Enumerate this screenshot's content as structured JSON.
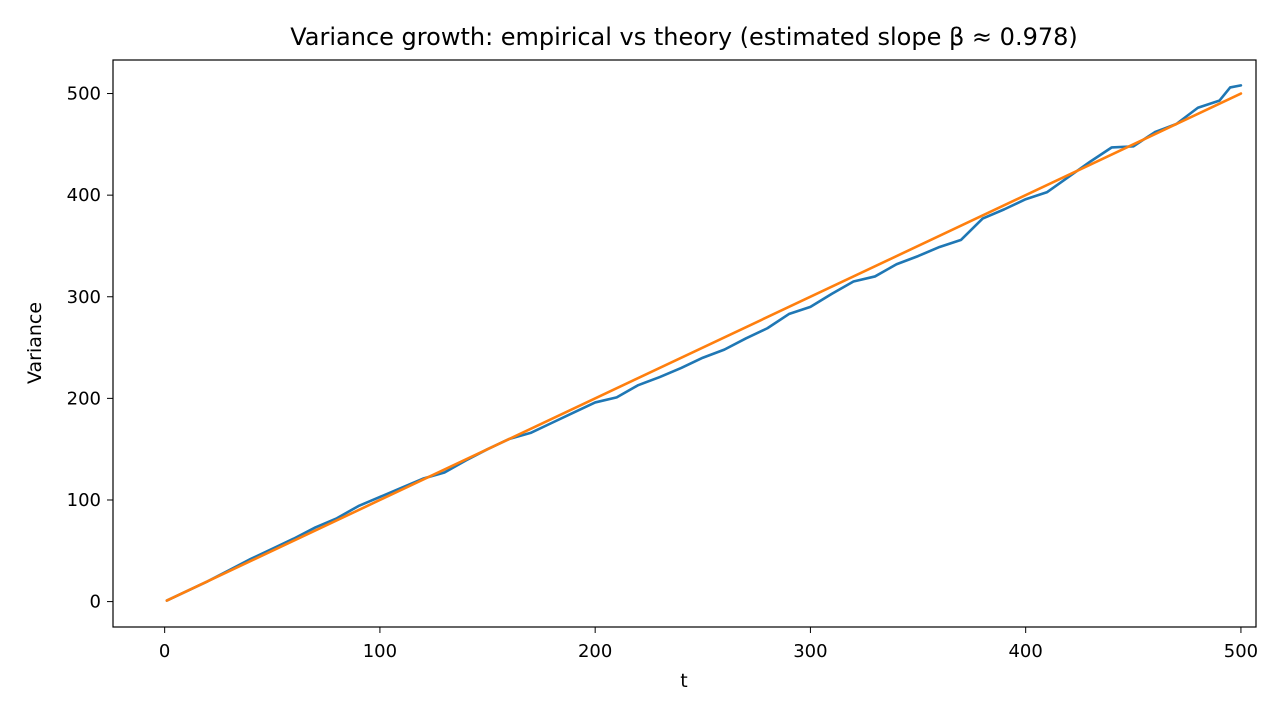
{
  "chart_data": {
    "type": "line",
    "title": "Variance growth: empirical vs theory (estimated slope β ≈ 0.978)",
    "xlabel": "t",
    "ylabel": "Variance",
    "xlim": [
      -24,
      507
    ],
    "ylim": [
      -25,
      533
    ],
    "xticks": [
      0,
      100,
      200,
      300,
      400,
      500
    ],
    "yticks": [
      0,
      100,
      200,
      300,
      400,
      500
    ],
    "grid": false,
    "legend": "none",
    "series": [
      {
        "color": "#1f77b4",
        "x": [
          1,
          10,
          20,
          30,
          40,
          50,
          60,
          70,
          80,
          90,
          100,
          110,
          120,
          130,
          140,
          150,
          160,
          170,
          180,
          190,
          200,
          210,
          220,
          230,
          240,
          250,
          260,
          270,
          280,
          290,
          300,
          310,
          320,
          330,
          340,
          350,
          360,
          370,
          380,
          390,
          400,
          410,
          420,
          430,
          440,
          450,
          460,
          470,
          480,
          490,
          495,
          500
        ],
        "y": [
          1,
          10,
          20,
          31,
          42,
          52,
          62,
          73,
          82,
          94,
          103,
          112,
          121,
          127,
          139,
          150,
          160,
          166,
          176,
          186,
          196,
          201,
          213,
          221,
          230,
          240,
          248,
          259,
          269,
          283,
          290,
          303,
          315,
          320,
          332,
          340,
          349,
          356,
          377,
          386,
          396,
          403,
          418,
          433,
          447,
          448,
          462,
          470,
          486,
          493,
          506,
          508
        ]
      },
      {
        "color": "#ff7f0e",
        "x": [
          1,
          500
        ],
        "y": [
          1,
          500
        ]
      }
    ]
  }
}
